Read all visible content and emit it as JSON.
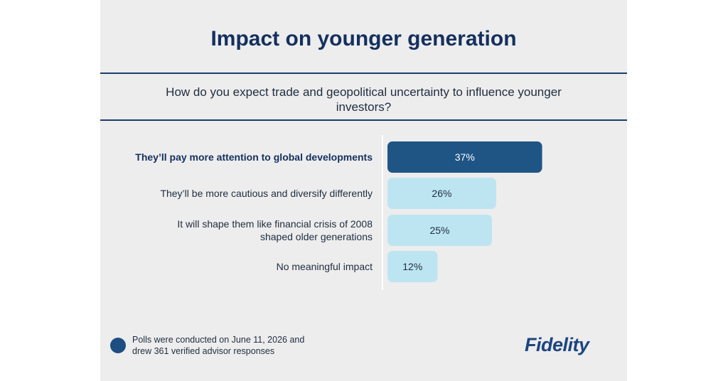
{
  "title": "Impact on younger generation",
  "question": "How do you expect trade and geopolitical uncertainty to influence younger investors?",
  "chart_data": {
    "type": "bar",
    "orientation": "horizontal",
    "categories": [
      [
        "They’ll pay more attention to global developments"
      ],
      [
        "They’ll be more cautious and diversify differently"
      ],
      [
        "It will shape them like financial crisis of 2008",
        "shaped older generations"
      ],
      [
        "No meaningful impact"
      ]
    ],
    "values": [
      37,
      26,
      25,
      12
    ],
    "value_labels": [
      "37%",
      "26%",
      "25%",
      "12%"
    ],
    "highlight_index": 0,
    "colors": {
      "highlight": "#1f5585",
      "default": "#bde5f1",
      "highlight_text": "#ffffff",
      "default_text": "#1f2d3d"
    },
    "grid": false,
    "legend": "none"
  },
  "footer": {
    "note_lines": [
      "Polls were conducted on June 11, 2026 and",
      "drew 361 verified advisor responses"
    ]
  },
  "logo": {
    "text": "Fidelity"
  }
}
